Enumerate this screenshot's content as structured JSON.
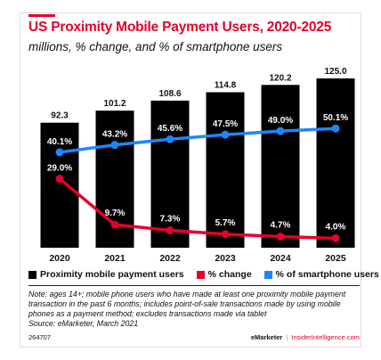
{
  "header": {
    "title": "US Proximity Mobile Payment Users, 2020-2025",
    "subtitle": "millions, % change, and % of smartphone users"
  },
  "legend": {
    "users_label": "Proximity mobile payment users",
    "change_label": "% change",
    "share_label": "% of smartphone users"
  },
  "colors": {
    "bars": "#000000",
    "change_line": "#e4002b",
    "share_line": "#1f86f7",
    "accent": "#e4002b"
  },
  "chart_data": {
    "type": "bar",
    "categories": [
      "2020",
      "2021",
      "2022",
      "2023",
      "2024",
      "2025"
    ],
    "values": [
      92.3,
      101.2,
      108.6,
      114.8,
      120.2,
      125.0
    ],
    "value_labels": [
      "92.3",
      "101.2",
      "108.6",
      "114.8",
      "120.2",
      "125.0"
    ],
    "series": [
      {
        "name": "Proximity mobile payment users",
        "type": "bar",
        "values": [
          92.3,
          101.2,
          108.6,
          114.8,
          120.2,
          125.0
        ]
      },
      {
        "name": "% change",
        "type": "line",
        "values": [
          29.0,
          9.7,
          7.3,
          5.7,
          4.7,
          4.0
        ],
        "labels": [
          "29.0%",
          "9.7%",
          "7.3%",
          "5.7%",
          "4.7%",
          "4.0%"
        ]
      },
      {
        "name": "% of smartphone users",
        "type": "line",
        "values": [
          40.1,
          43.2,
          45.6,
          47.5,
          49.0,
          50.1
        ],
        "labels": [
          "40.1%",
          "43.2%",
          "45.6%",
          "47.5%",
          "49.0%",
          "50.1%"
        ]
      }
    ],
    "ylim": [
      0,
      130
    ],
    "line_ylim": [
      0,
      80
    ],
    "grid": false,
    "legend_position": "bottom"
  },
  "notes": {
    "text": "Note: ages 14+; mobile phone users who have made at least one proximity mobile payment transaction in the past 6 months; includes point-of-sale transactions made by using mobile phones as a payment method; excludes transactions made via tablet",
    "source": "Source: eMarketer, March 2021"
  },
  "footer": {
    "id": "264707",
    "brand": "eMarketer",
    "brand2": "InsiderIntelligence.com"
  }
}
